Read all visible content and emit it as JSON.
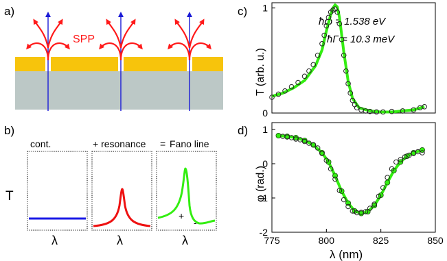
{
  "panels": {
    "a": {
      "label": "a)",
      "spp_label": "SPP",
      "colors": {
        "metal": "#f7c40c",
        "substrate": "#bcc8c6",
        "arrow_red": "#ff1a1a",
        "axis_blue": "#1a1ad6"
      }
    },
    "b": {
      "label": "b)",
      "title_cont": "cont.",
      "title_resonance": "+ resonance",
      "title_eq": "=",
      "title_fano": "Fano line",
      "ylabel": "T",
      "xlabel": "λ",
      "plus": "+",
      "minus": "-",
      "colors": {
        "cont": "#1a1ae6",
        "resonance": "#ee1111",
        "fano": "#33ee11"
      }
    },
    "c": {
      "label": "c)",
      "ylabel": "T (arb. u.)",
      "energy_label": "ħω = 1.538 eV",
      "width_label": "ħΓ = 10.3 meV"
    },
    "d": {
      "label": "d)",
      "ylabel": "φ (rad.)",
      "xlabel": "λ (nm)"
    }
  },
  "chart_data": [
    {
      "type": "scatter",
      "panel": "c",
      "ylabel": "T (arb. u.)",
      "xlim": [
        775,
        850
      ],
      "ylim": [
        0,
        1.05
      ],
      "yticks": [
        0,
        1
      ],
      "series": [
        {
          "marker": "open-circle",
          "x": [
            775,
            778,
            781,
            784,
            787,
            790,
            792,
            794,
            796,
            798,
            799,
            800,
            801,
            802,
            803,
            804,
            805,
            806,
            807,
            808,
            809,
            810,
            811,
            812,
            813,
            814,
            816,
            818,
            820,
            823,
            826,
            830,
            835,
            840,
            843,
            845
          ],
          "y": [
            0.15,
            0.18,
            0.21,
            0.25,
            0.29,
            0.35,
            0.4,
            0.46,
            0.55,
            0.66,
            0.74,
            0.83,
            0.91,
            0.96,
            0.98,
            0.99,
            0.96,
            0.85,
            0.7,
            0.55,
            0.4,
            0.28,
            0.19,
            0.12,
            0.08,
            0.05,
            0.03,
            0.02,
            0.015,
            0.01,
            0.01,
            0.015,
            0.02,
            0.03,
            0.05,
            0.06
          ]
        },
        {
          "marker": "line",
          "color": "#33ee11",
          "x": [
            775,
            780,
            785,
            790,
            795,
            798,
            800,
            802,
            803,
            804,
            805,
            806,
            807,
            808,
            810,
            812,
            815,
            820,
            825,
            830,
            835,
            840,
            845
          ],
          "y": [
            0.16,
            0.19,
            0.24,
            0.31,
            0.45,
            0.6,
            0.78,
            0.94,
            1.0,
            1.03,
            1.01,
            0.91,
            0.75,
            0.58,
            0.3,
            0.14,
            0.05,
            0.02,
            0.01,
            0.01,
            0.02,
            0.03,
            0.06
          ]
        }
      ]
    },
    {
      "type": "scatter",
      "panel": "d",
      "xlabel": "λ (nm)",
      "ylabel": "φ (rad.)",
      "xlim": [
        775,
        850
      ],
      "ylim": [
        -2,
        1.2
      ],
      "xticks": [
        775,
        800,
        825,
        850
      ],
      "yticks": [
        -2,
        -1,
        0,
        1
      ],
      "series": [
        {
          "marker": "open-circle",
          "x": [
            780,
            782,
            784,
            786,
            788,
            790,
            792,
            794,
            796,
            798,
            800,
            802,
            804,
            806,
            808,
            810,
            812,
            814,
            816,
            818,
            820,
            822,
            824,
            826,
            828,
            830,
            832,
            834,
            836,
            838,
            840,
            842,
            844
          ],
          "y": [
            0.8,
            0.78,
            0.76,
            0.72,
            0.7,
            0.65,
            0.6,
            0.55,
            0.46,
            0.3,
            0.1,
            -0.15,
            -0.45,
            -0.78,
            -1.05,
            -1.25,
            -1.38,
            -1.43,
            -1.42,
            -1.4,
            -1.3,
            -1.18,
            -0.95,
            -0.7,
            -0.4,
            -0.15,
            0.05,
            0.12,
            0.2,
            0.25,
            0.3,
            0.35,
            0.32
          ]
        },
        {
          "marker": "filled-circle-line",
          "color": "#33ee11",
          "x": [
            778,
            782,
            786,
            790,
            794,
            798,
            801,
            804,
            807,
            810,
            813,
            816,
            819,
            822,
            825,
            828,
            831,
            834,
            837,
            840,
            844
          ],
          "y": [
            0.82,
            0.8,
            0.76,
            0.68,
            0.55,
            0.32,
            0.05,
            -0.35,
            -0.8,
            -1.15,
            -1.38,
            -1.45,
            -1.4,
            -1.22,
            -0.92,
            -0.55,
            -0.2,
            0.05,
            0.22,
            0.32,
            0.4
          ]
        }
      ]
    }
  ]
}
